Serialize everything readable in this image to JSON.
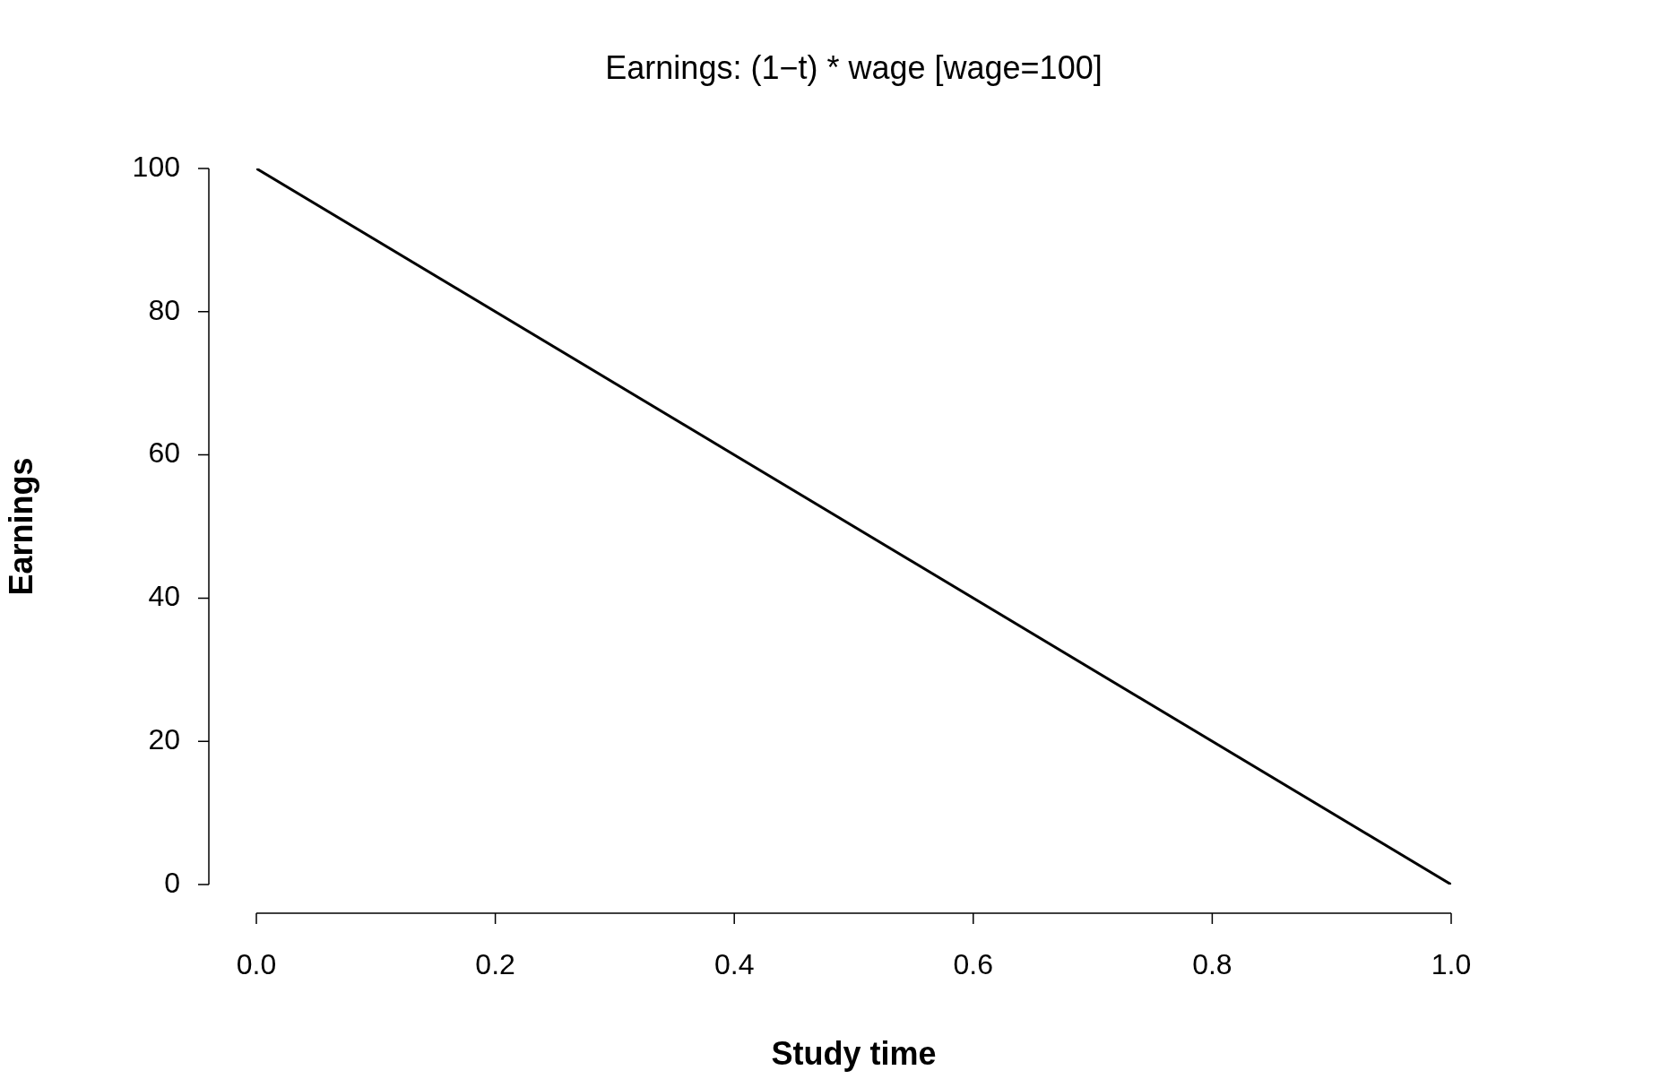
{
  "chart_data": {
    "type": "line",
    "title": "Earnings: (1−t) * wage [wage=100]",
    "xlabel": "Study time",
    "ylabel": "Earnings",
    "x": [
      0,
      1
    ],
    "values": [
      100,
      0
    ],
    "color": "#000000",
    "marker": "none",
    "grid": false,
    "legend": false,
    "xlim": [
      0,
      1
    ],
    "ylim": [
      0,
      100
    ],
    "xticks": [
      {
        "value": 0,
        "label": "0.0"
      },
      {
        "value": 0.2,
        "label": "0.2"
      },
      {
        "value": 0.4,
        "label": "0.4"
      },
      {
        "value": 0.6,
        "label": "0.6"
      },
      {
        "value": 0.8,
        "label": "0.8"
      },
      {
        "value": 1,
        "label": "1.0"
      }
    ],
    "yticks": [
      0,
      20,
      40,
      60,
      80,
      100
    ]
  }
}
